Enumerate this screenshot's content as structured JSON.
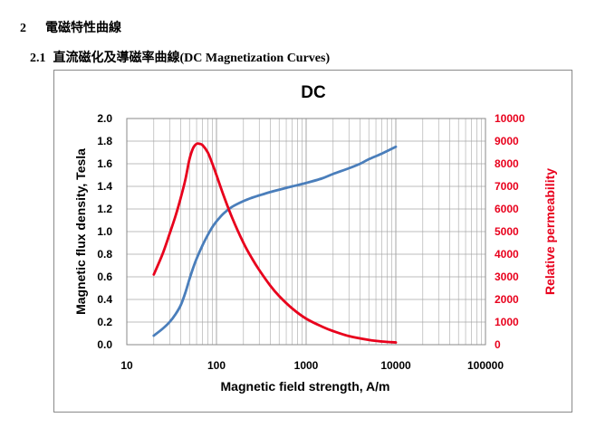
{
  "section": {
    "number": "2",
    "title": "電磁特性曲線"
  },
  "subsection": {
    "number": "2.1",
    "title": "直流磁化及導磁率曲線(DC Magnetization Curves)"
  },
  "colors": {
    "flux_series": "#4a7ebb",
    "permeability_series": "#e8001c",
    "grid": "#a6a6a6",
    "frame": "#8a8a8a"
  },
  "chart_data": {
    "type": "line",
    "title": "DC",
    "xlabel": "Magnetic field strength, A/m",
    "ylabel": "Magnetic flux density, Tesla",
    "y2label": "Relative permeability",
    "x_scale": "log",
    "xlim": [
      10,
      100000
    ],
    "ylim": [
      0,
      2.0
    ],
    "y2lim": [
      0,
      10000
    ],
    "x_ticks": [
      "10",
      "100",
      "1000",
      "10000",
      "100000"
    ],
    "y_ticks": [
      "0.0",
      "0.2",
      "0.4",
      "0.6",
      "0.8",
      "1.0",
      "1.2",
      "1.4",
      "1.6",
      "1.8",
      "2.0"
    ],
    "y2_ticks": [
      "0",
      "1000",
      "2000",
      "3000",
      "4000",
      "5000",
      "6000",
      "7000",
      "8000",
      "9000",
      "10000"
    ],
    "grid": true,
    "legend": "none",
    "series": [
      {
        "axis": "left",
        "color": "#4a7ebb",
        "x": [
          20,
          25,
          30,
          35,
          40,
          45,
          50,
          55,
          60,
          70,
          80,
          90,
          100,
          120,
          150,
          200,
          250,
          300,
          400,
          500,
          700,
          1000,
          1500,
          2000,
          3000,
          4000,
          5000,
          7000,
          10000
        ],
        "y": [
          0.08,
          0.14,
          0.2,
          0.27,
          0.35,
          0.46,
          0.58,
          0.68,
          0.76,
          0.88,
          0.97,
          1.04,
          1.09,
          1.16,
          1.22,
          1.27,
          1.3,
          1.32,
          1.35,
          1.37,
          1.4,
          1.43,
          1.47,
          1.51,
          1.56,
          1.6,
          1.64,
          1.69,
          1.75
        ]
      },
      {
        "axis": "right",
        "color": "#e8001c",
        "x": [
          20,
          25,
          30,
          35,
          40,
          45,
          50,
          55,
          60,
          65,
          70,
          80,
          90,
          100,
          120,
          150,
          200,
          250,
          300,
          400,
          500,
          700,
          1000,
          1500,
          2000,
          3000,
          5000,
          7000,
          10000
        ],
        "y": [
          3100,
          4000,
          4900,
          5700,
          6500,
          7300,
          8200,
          8700,
          8880,
          8880,
          8820,
          8500,
          8000,
          7500,
          6600,
          5600,
          4500,
          3800,
          3300,
          2600,
          2150,
          1600,
          1150,
          800,
          600,
          380,
          210,
          140,
          100
        ]
      }
    ]
  }
}
